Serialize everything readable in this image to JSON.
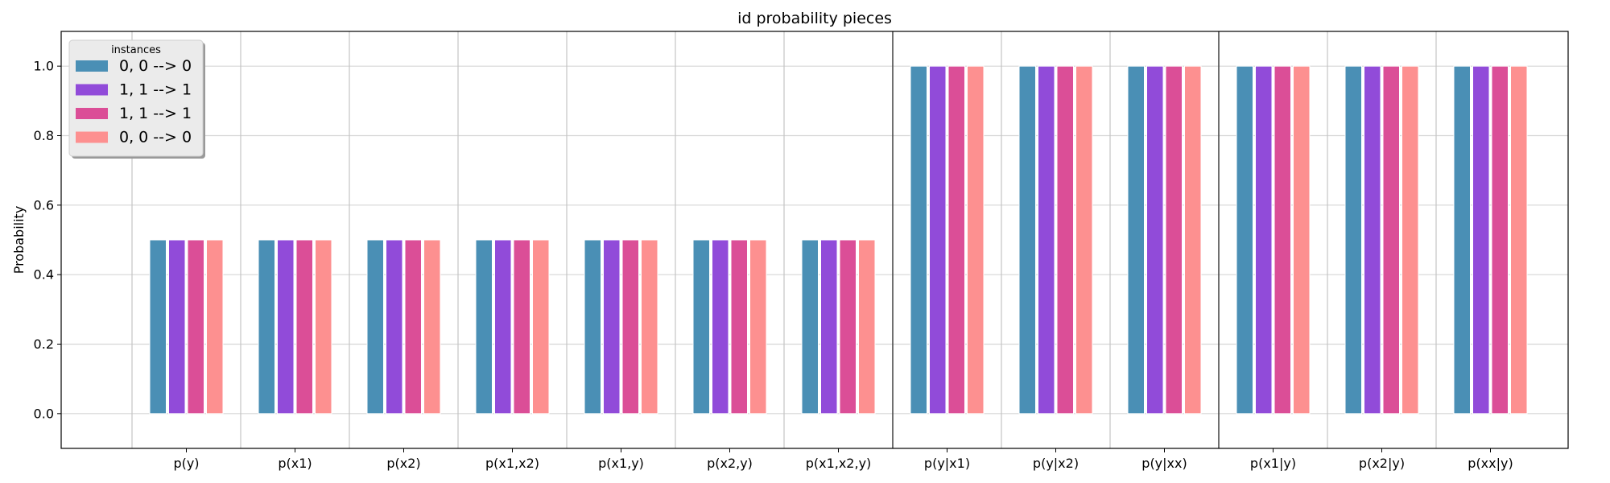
{
  "chart_data": {
    "type": "bar",
    "title": "id probability pieces",
    "xlabel": "",
    "ylabel": "Probability",
    "ylim": [
      -0.1,
      1.1
    ],
    "yticks": [
      0.0,
      0.2,
      0.4,
      0.6,
      0.8,
      1.0
    ],
    "ytick_labels": [
      "0.0",
      "0.2",
      "0.4",
      "0.6",
      "0.8",
      "1.0"
    ],
    "grid": true,
    "categories": [
      "p(y)",
      "p(x1)",
      "p(x2)",
      "p(x1,x2)",
      "p(x1,y)",
      "p(x2,y)",
      "p(x1,x2,y)",
      "p(y|x1)",
      "p(y|x2)",
      "p(y|xx)",
      "p(x1|y)",
      "p(x2|y)",
      "p(xx|y)"
    ],
    "group_dividers_after": [
      6,
      9
    ],
    "legend": {
      "title": "instances",
      "placement": "top-left"
    },
    "series": [
      {
        "name": "0, 0 --> 0",
        "color": "#4a8fb5",
        "values": [
          0.5,
          0.5,
          0.5,
          0.5,
          0.5,
          0.5,
          0.5,
          1.0,
          1.0,
          1.0,
          1.0,
          1.0,
          1.0
        ]
      },
      {
        "name": "1, 1 --> 1",
        "color": "#914bd9",
        "values": [
          0.5,
          0.5,
          0.5,
          0.5,
          0.5,
          0.5,
          0.5,
          1.0,
          1.0,
          1.0,
          1.0,
          1.0,
          1.0
        ]
      },
      {
        "name": "1, 1 --> 1",
        "color": "#db4e97",
        "values": [
          0.5,
          0.5,
          0.5,
          0.5,
          0.5,
          0.5,
          0.5,
          1.0,
          1.0,
          1.0,
          1.0,
          1.0,
          1.0
        ]
      },
      {
        "name": "0, 0 --> 0",
        "color": "#fd9090",
        "values": [
          0.5,
          0.5,
          0.5,
          0.5,
          0.5,
          0.5,
          0.5,
          1.0,
          1.0,
          1.0,
          1.0,
          1.0,
          1.0
        ]
      }
    ]
  }
}
